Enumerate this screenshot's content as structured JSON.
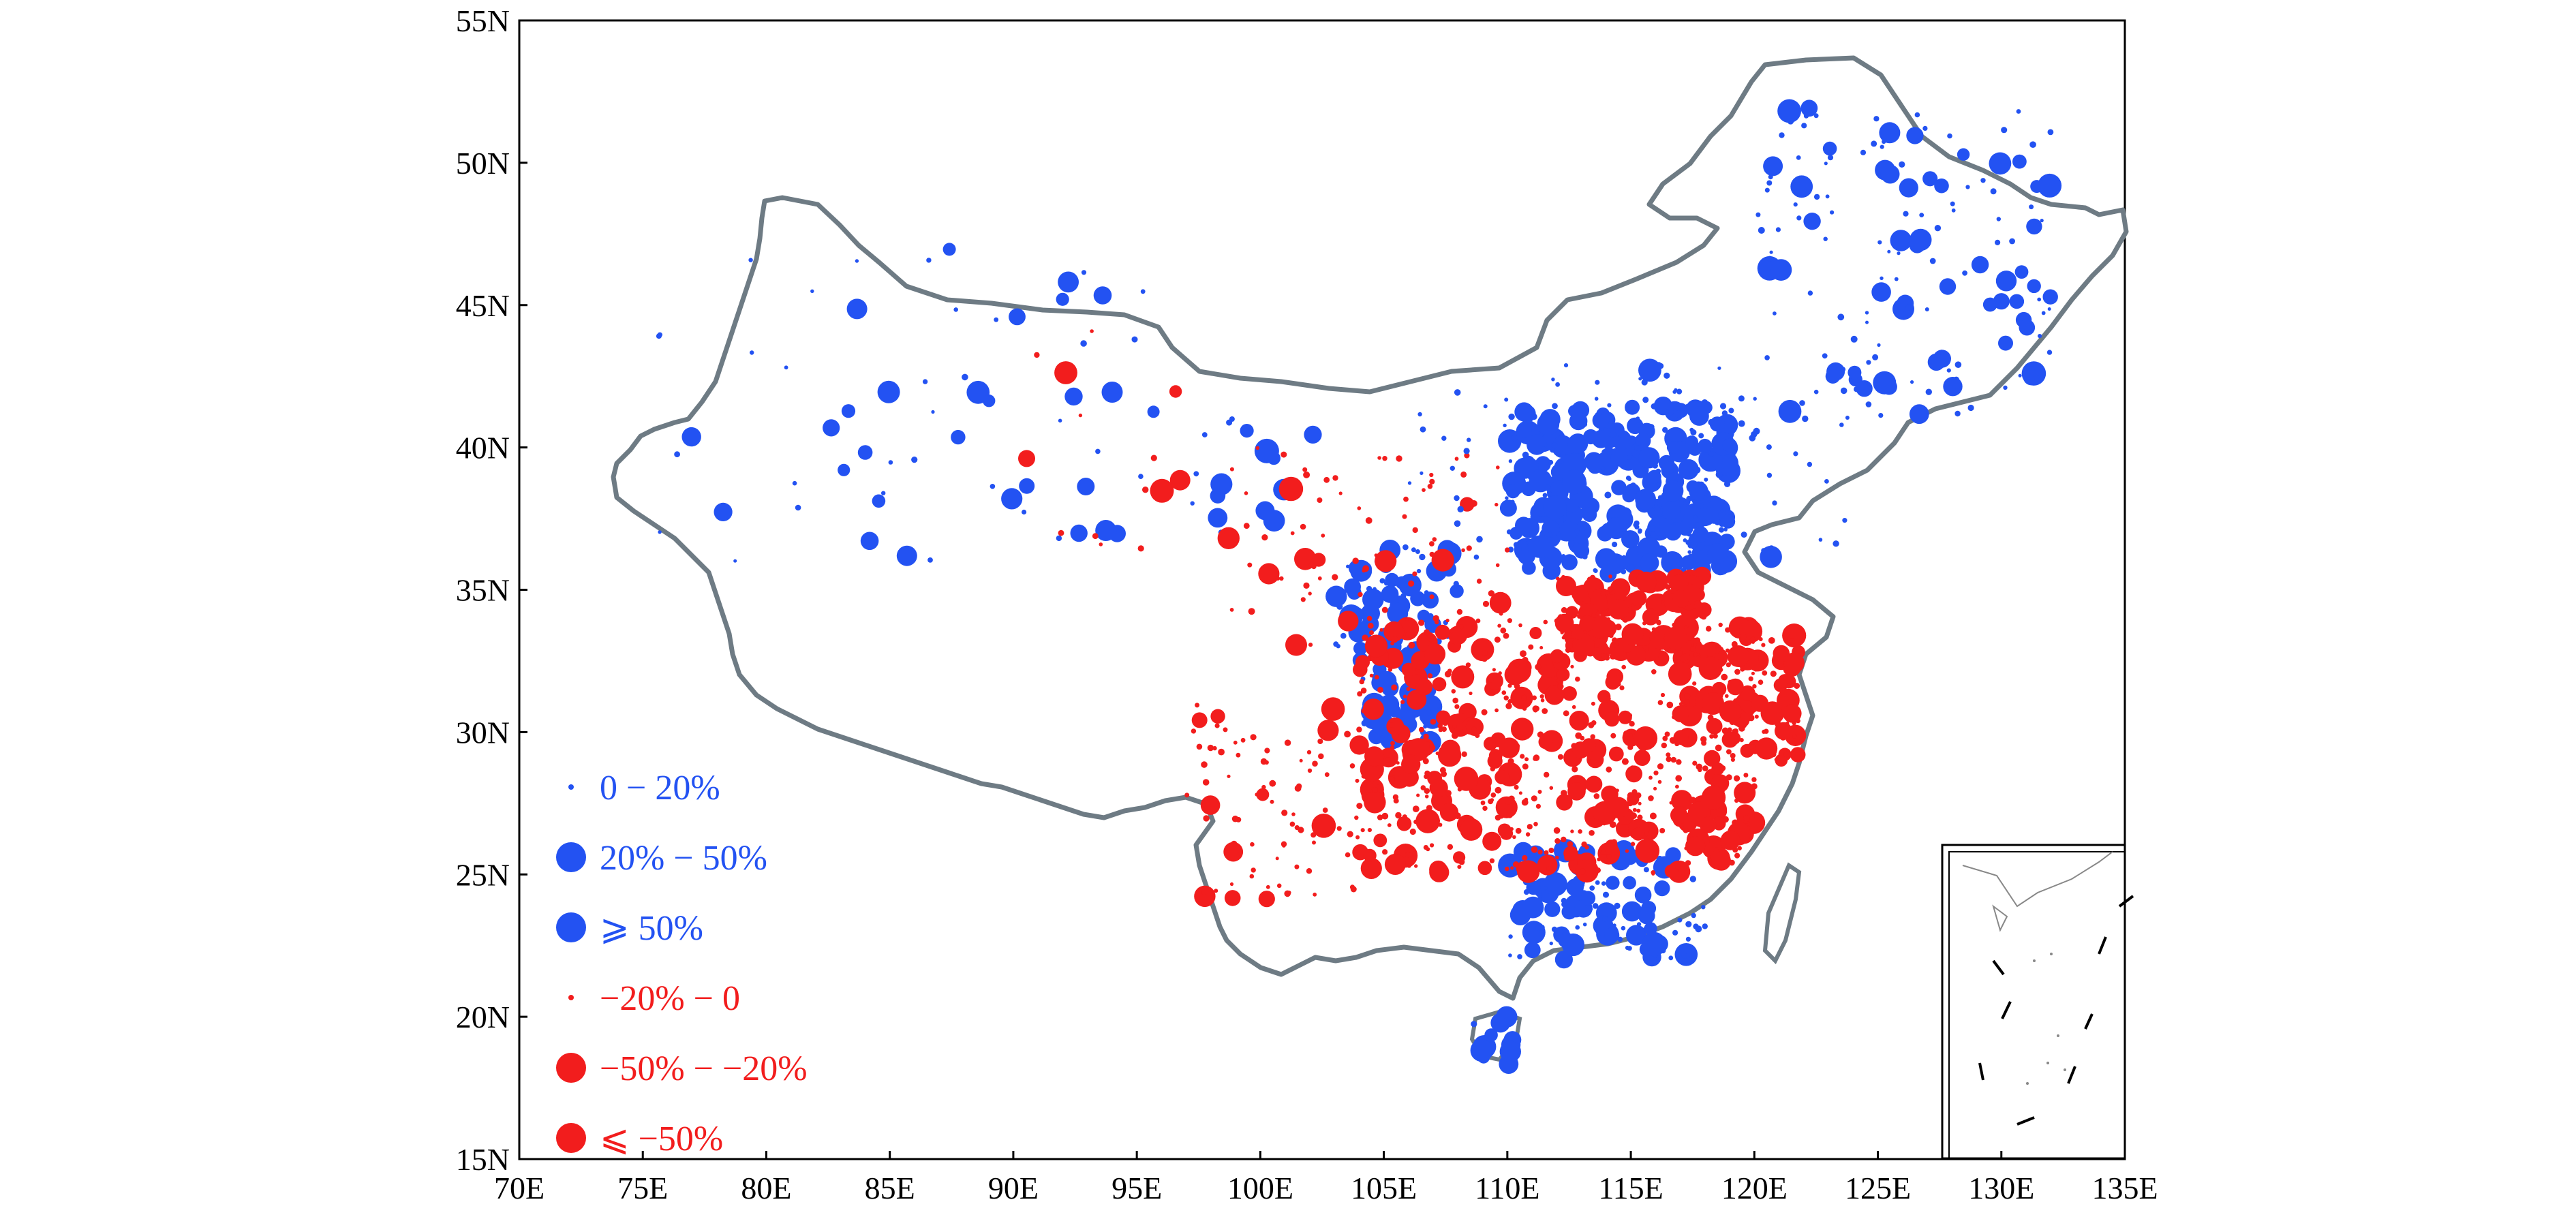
{
  "map": {
    "x_range": [
      70,
      135
    ],
    "y_range": [
      15,
      55
    ],
    "x_ticks": [
      "70E",
      "75E",
      "80E",
      "85E",
      "90E",
      "95E",
      "100E",
      "105E",
      "110E",
      "115E",
      "120E",
      "125E",
      "130E",
      "135E"
    ],
    "y_ticks": [
      "15N",
      "20N",
      "25N",
      "30N",
      "35N",
      "40N",
      "45N",
      "50N",
      "55N"
    ],
    "colors": {
      "positive": "#2352f2",
      "negative": "#f21d1d",
      "border": "#6e7b84"
    }
  },
  "legend": [
    {
      "label": "0 − 20%",
      "color": "positive",
      "size": "small"
    },
    {
      "label": "20% − 50%",
      "color": "positive",
      "size": "large"
    },
    {
      "label": "⩾ 50%",
      "color": "positive",
      "size": "large"
    },
    {
      "label": "−20% − 0",
      "color": "negative",
      "size": "small"
    },
    {
      "label": "−50% − −20%",
      "color": "negative",
      "size": "large"
    },
    {
      "label": "⩽ −50%",
      "color": "negative",
      "size": "large"
    }
  ]
}
